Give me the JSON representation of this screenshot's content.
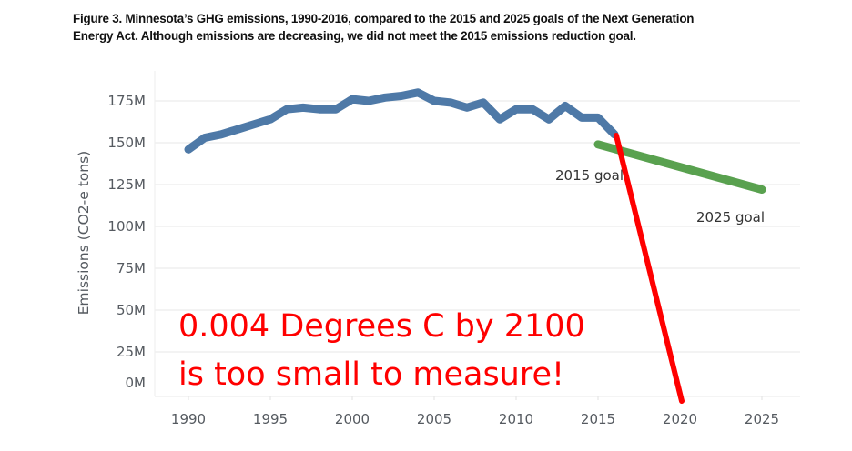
{
  "caption": {
    "line1": "Figure 3. Minnesota’s GHG emissions, 1990-2016, compared to the 2015 and 2025 goals of the Next Generation",
    "line2": "Energy Act. Although emissions are decreasing, we did not meet the 2015 emissions reduction goal."
  },
  "chart_data": {
    "type": "line",
    "title": "Figure 3. Minnesota’s GHG emissions, 1990-2016, compared to the 2015 and 2025 goals of the Next Generation Energy Act. Although emissions are decreasing, we did not meet the 2015 emissions reduction goal.",
    "xlabel": "",
    "ylabel": "Emissions (CO2-e tons)",
    "xlim": [
      1988.1,
      2027.3
    ],
    "ylim": [
      0,
      185
    ],
    "grid": true,
    "x_ticks": [
      1990,
      1995,
      2000,
      2005,
      2010,
      2015,
      2020,
      2025
    ],
    "y_ticks": [
      {
        "value": 0,
        "label": "0M"
      },
      {
        "value": 25,
        "label": "25M"
      },
      {
        "value": 50,
        "label": "50M"
      },
      {
        "value": 75,
        "label": "75M"
      },
      {
        "value": 100,
        "label": "100M"
      },
      {
        "value": 125,
        "label": "125M"
      },
      {
        "value": 150,
        "label": "150M"
      },
      {
        "value": 175,
        "label": "175M"
      }
    ],
    "series": [
      {
        "name": "Emissions",
        "color": "#4e79a7",
        "x": [
          1990,
          1991,
          1992,
          1993,
          1994,
          1995,
          1996,
          1997,
          1998,
          1999,
          2000,
          2001,
          2002,
          2003,
          2004,
          2005,
          2006,
          2007,
          2008,
          2009,
          2010,
          2011,
          2012,
          2013,
          2014,
          2015,
          2016
        ],
        "y": [
          146,
          153,
          155,
          158,
          161,
          164,
          170,
          171,
          170,
          170,
          176,
          175,
          177,
          178,
          180,
          175,
          174,
          171,
          174,
          164,
          170,
          170,
          164,
          172,
          165,
          165,
          155
        ]
      },
      {
        "name": "Goal",
        "color": "#59a14f",
        "x": [
          2015,
          2025
        ],
        "y": [
          149,
          122
        ]
      }
    ],
    "annotations": [
      {
        "text": "2015 goal",
        "x": 2015,
        "y": 131
      },
      {
        "text": "2025 goal",
        "x": 2025,
        "y": 105
      }
    ],
    "overlay": {
      "line1": "0.004 Degrees C by 2100",
      "line2": "is too small to measure!",
      "color": "#ff0000",
      "arrow_from": {
        "x": 2016,
        "y": 154
      },
      "arrow_to": {
        "x": 2020.1,
        "y": -4
      }
    }
  }
}
